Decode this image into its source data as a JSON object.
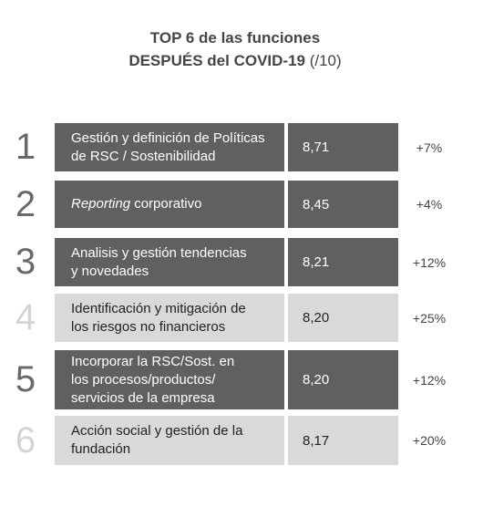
{
  "title": {
    "line1": "TOP 6 de las funciones",
    "line2": "DESPUÉS del COVID-19",
    "line2_suffix": "(/10)"
  },
  "table": {
    "rows": [
      {
        "rank": "1",
        "function": [
          "Gestión y definición de Políticas",
          "de RSC / Sostenibilidad"
        ],
        "score": "8,71",
        "change": "+7%",
        "fill": "#5f6062",
        "text_color": "#ffffff",
        "rank_color": "#6a6a6c"
      },
      {
        "rank": "2",
        "function": [
          [
            {
              "text": "Reporting",
              "italic": true
            },
            {
              "text": " corporativo",
              "italic": false
            }
          ]
        ],
        "score": "8,45",
        "change": "+4%",
        "fill": "#5f6062",
        "text_color": "#ffffff",
        "rank_color": "#6a6a6c"
      },
      {
        "rank": "3",
        "function": [
          "Analisis y gestión tendencias",
          "y novedades"
        ],
        "score": "8,21",
        "change": "+12%",
        "fill": "#5f6062",
        "text_color": "#ffffff",
        "rank_color": "#6a6a6c"
      },
      {
        "rank": "4",
        "function": [
          "Identificación y mitigación de",
          "los riesgos no financieros"
        ],
        "score": "8,20",
        "change": "+25%",
        "fill": "#d9d9db",
        "text_color": "#222222",
        "rank_color": "#d4d4d6"
      },
      {
        "rank": "5",
        "function": [
          "Incorporar la RSC/Sost. en",
          "los procesos/productos/",
          "servicios de la empresa"
        ],
        "score": "8,20",
        "change": "+12%",
        "fill": "#5f6062",
        "text_color": "#ffffff",
        "rank_color": "#6a6a6c"
      },
      {
        "rank": "6",
        "function": [
          "Acción social y gestión de la",
          "fundación"
        ],
        "score": "8,17",
        "change": "+20%",
        "fill": "#d9d9db",
        "text_color": "#222222",
        "rank_color": "#d4d4d6"
      }
    ]
  }
}
